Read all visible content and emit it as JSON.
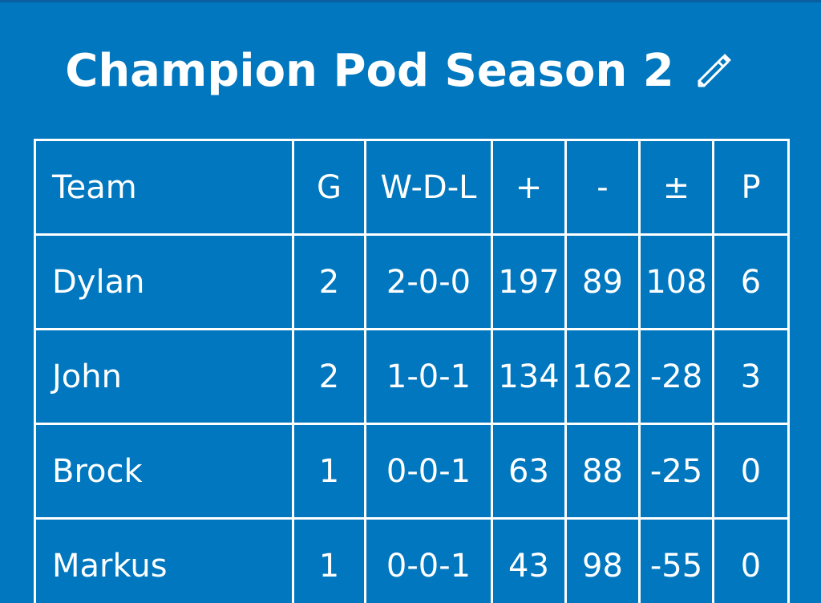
{
  "header": {
    "title": "Champion Pod Season 2",
    "edit_icon": "pencil-icon"
  },
  "standings": {
    "columns": [
      "Team",
      "G",
      "W-D-L",
      "+",
      "-",
      "±",
      "P"
    ],
    "rows": [
      [
        "Dylan",
        "2",
        "2-0-0",
        "197",
        "89",
        "108",
        "6"
      ],
      [
        "John",
        "2",
        "1-0-1",
        "134",
        "162",
        "-28",
        "3"
      ],
      [
        "Brock",
        "1",
        "0-0-1",
        "63",
        "88",
        "-25",
        "0"
      ],
      [
        "Markus",
        "1",
        "0-0-1",
        "43",
        "98",
        "-55",
        "0"
      ]
    ]
  },
  "colors": {
    "background": "#0077be",
    "text": "#ffffff",
    "grid": "#ffffff"
  }
}
